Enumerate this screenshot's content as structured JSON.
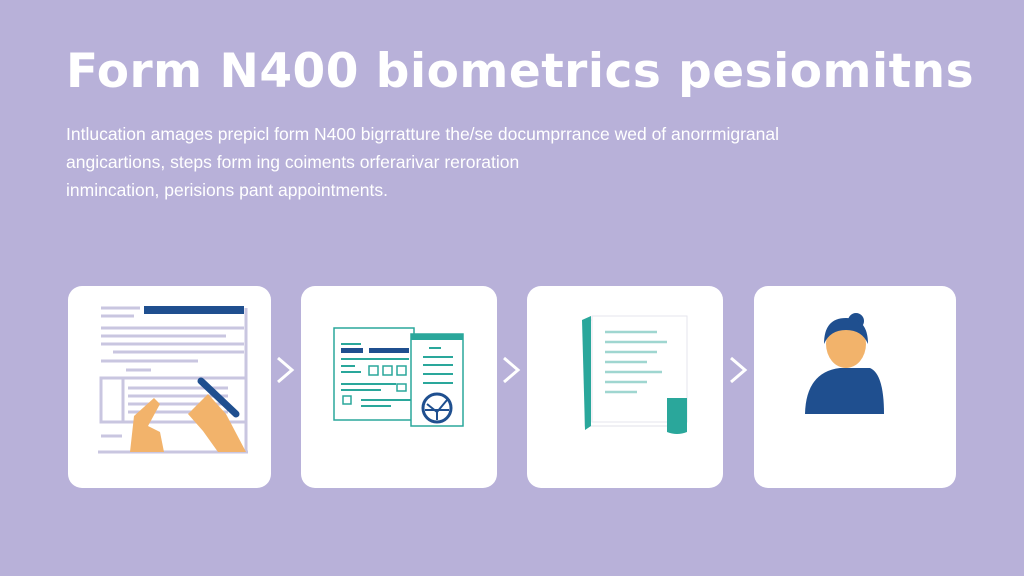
{
  "title": "Form N400 biometrics pesiomitns",
  "description": [
    "Intlucation amages prepicl form N400 bigrratture the/se documprrance wed of anorrmigranal",
    "angicartions, steps form ing coiments orferarivar reroration",
    "inmincation, perisions pant appointments."
  ],
  "steps": [
    {
      "icon": "form-filling-hands-icon"
    },
    {
      "icon": "documents-with-seal-icon"
    },
    {
      "icon": "document-pages-icon"
    },
    {
      "icon": "person-avatar-icon"
    }
  ],
  "colors": {
    "background": "#b8b1d9",
    "navy": "#1f4f8f",
    "teal": "#2aa79b",
    "skin": "#f2b36b",
    "line": "#c9c6e0"
  }
}
